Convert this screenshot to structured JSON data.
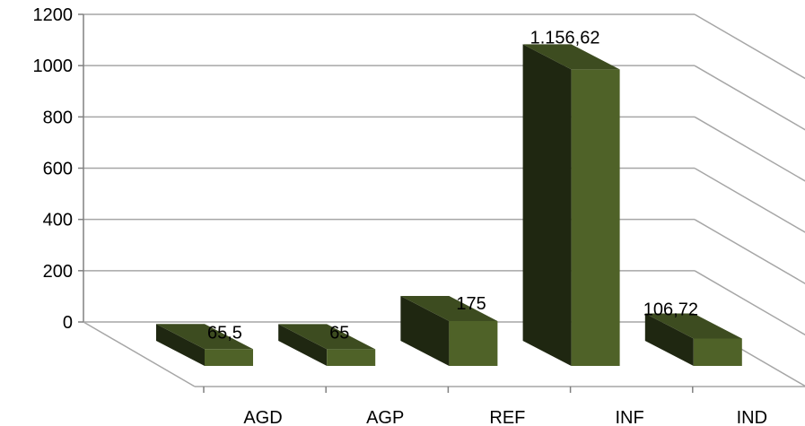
{
  "chart_data": {
    "type": "bar",
    "style": "3d-column",
    "title": "",
    "xlabel": "",
    "ylabel": "",
    "categories": [
      "AGD",
      "AGP",
      "REF",
      "INF",
      "IND"
    ],
    "values": [
      65.5,
      65,
      175,
      1156.62,
      106.72
    ],
    "data_labels": [
      "65,5",
      "65",
      "175",
      "1.156,62",
      "106,72"
    ],
    "y_ticks": [
      0,
      200,
      400,
      600,
      800,
      1000,
      1200
    ],
    "y_tick_labels": [
      "0",
      "200",
      "400",
      "600",
      "800",
      "1000",
      "1200"
    ],
    "ylim": [
      0,
      1200
    ],
    "grid": true,
    "legend": "none",
    "colors": {
      "bar_front": "#4f6228",
      "bar_side": "#1f2711",
      "bar_top": "#3d4c20",
      "grid": "#a6a6a6",
      "axis": "#808080",
      "text": "#000000"
    }
  }
}
